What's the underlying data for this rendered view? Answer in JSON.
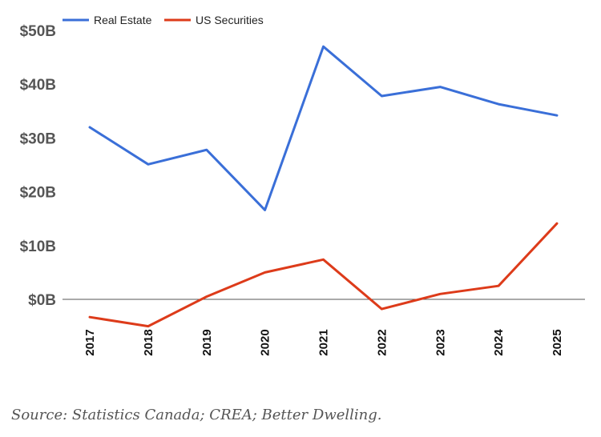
{
  "chart_data": {
    "type": "line",
    "x": [
      "2017",
      "2018",
      "2019",
      "2020",
      "2021",
      "2022",
      "2023",
      "2024",
      "2025"
    ],
    "series": [
      {
        "name": "Real Estate",
        "color": "#3a6fd8",
        "values": [
          32.0,
          25.1,
          27.8,
          16.6,
          47.0,
          37.8,
          39.5,
          36.3,
          34.2
        ]
      },
      {
        "name": "US Securities",
        "color": "#dd3b1a",
        "values": [
          -3.3,
          -5.0,
          0.5,
          5.0,
          7.4,
          -1.8,
          1.0,
          2.5,
          14.1
        ]
      }
    ],
    "ylim": [
      -8,
      52
    ],
    "yticks": [
      0,
      10,
      20,
      30,
      40,
      50
    ],
    "ytick_labels": [
      "$0B",
      "$10B",
      "$20B",
      "$30B",
      "$40B",
      "$50B"
    ],
    "zero_line": true,
    "grid": false,
    "legend_position": "top-left"
  },
  "source": "Source: Statistics Canada; CREA; Better Dwelling."
}
